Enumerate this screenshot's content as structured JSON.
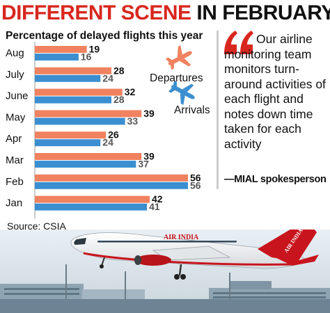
{
  "headline": {
    "part_a": "DIFFERENT SCENE",
    "part_b": " IN FEBRUARY"
  },
  "quote": {
    "text": "Our airline monitoring team monitors turn-around activities of each flight and notes down time taken for each activity",
    "attribution": "—MIAL spokesperson"
  },
  "source": "Source: CSIA",
  "photo": {
    "airline_livery": "AIR INDIA"
  },
  "colors": {
    "departures": "#f0825f",
    "arrivals": "#3b8fd0",
    "headline_red": "#d8271f",
    "quote_mark": "#d8271f"
  },
  "chart_data": {
    "type": "bar",
    "orientation": "horizontal",
    "title": "Percentage of delayed flights this year",
    "categories": [
      "Aug",
      "July",
      "June",
      "May",
      "Apr",
      "Mar",
      "Feb",
      "Jan"
    ],
    "series": [
      {
        "name": "Departures",
        "values": [
          19,
          28,
          32,
          39,
          26,
          39,
          56,
          42
        ],
        "color": "#f0825f",
        "icon": "airplane-takeoff-icon"
      },
      {
        "name": "Arrivals",
        "values": [
          16,
          24,
          28,
          33,
          24,
          37,
          56,
          41
        ],
        "color": "#3b8fd0",
        "icon": "airplane-landing-icon"
      }
    ],
    "data_labels": true,
    "legend_position": "inside-right",
    "grid": false,
    "xlim": [
      0,
      56
    ]
  }
}
